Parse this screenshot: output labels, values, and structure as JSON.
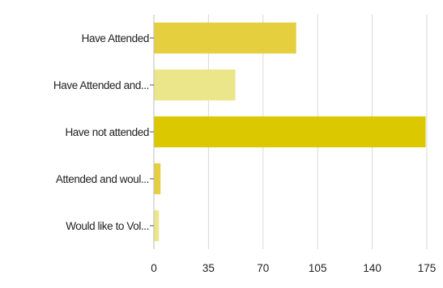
{
  "chart_data": {
    "type": "bar",
    "orientation": "horizontal",
    "categories": [
      "Have Attended",
      "Have Attended and...",
      "Have not attended",
      "Attended and woul...",
      "Would like to Vol..."
    ],
    "values": [
      91,
      52,
      174,
      4,
      3
    ],
    "colors": [
      "#e6cf3e",
      "#ece68b",
      "#dcc800",
      "#e6cf3e",
      "#ece68b"
    ],
    "xlim": [
      0,
      175
    ],
    "xticks": [
      "0",
      "35",
      "70",
      "105",
      "140",
      "175"
    ],
    "title": "",
    "xlabel": "",
    "ylabel": "",
    "grid": true
  }
}
